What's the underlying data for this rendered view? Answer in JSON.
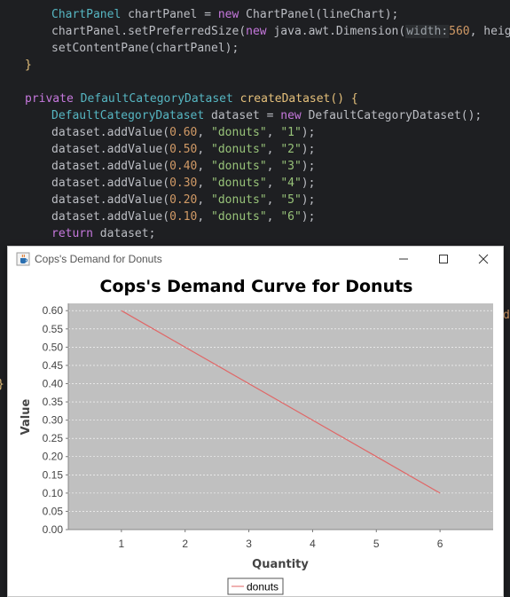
{
  "editor": {
    "lines": {
      "l1": {
        "a": "ChartPanel",
        "b": " chartPanel = ",
        "c": "new",
        "d": " ChartPanel(lineChart);"
      },
      "l2": {
        "a": "chartPanel.setPreferredSize(",
        "b": "new",
        "c": " java.awt.Dimension(",
        "hint": "width:",
        "d": "560",
        "e": ", heigh"
      },
      "l3": {
        "a": "setContentPane(chartPanel);"
      },
      "l4": {
        "a": "}"
      },
      "l6": {
        "a": "private",
        "b": " DefaultCategoryDataset",
        "c": " createDataset() {"
      },
      "l7": {
        "a": "DefaultCategoryDataset",
        "b": " dataset = ",
        "c": "new",
        "d": " DefaultCategoryDataset();"
      },
      "l8": {
        "a": "dataset.addValue(",
        "n": "0.60",
        "s": "\"donuts\"",
        "k": "\"1\"",
        "e": ");"
      },
      "l9": {
        "a": "dataset.addValue(",
        "n": "0.50",
        "s": "\"donuts\"",
        "k": "\"2\"",
        "e": ");"
      },
      "l10": {
        "a": "dataset.addValue(",
        "n": "0.40",
        "s": "\"donuts\"",
        "k": "\"3\"",
        "e": ");"
      },
      "l11": {
        "a": "dataset.addValue(",
        "n": "0.30",
        "s": "\"donuts\"",
        "k": "\"4\"",
        "e": ");"
      },
      "l12": {
        "a": "dataset.addValue(",
        "n": "0.20",
        "s": "\"donuts\"",
        "k": "\"5\"",
        "e": ");"
      },
      "l13": {
        "a": "dataset.addValue(",
        "n": "0.10",
        "s": "\"donuts\"",
        "k": "\"6\"",
        "e": ");"
      },
      "l14": {
        "a": "return",
        "b": " dataset;"
      }
    },
    "edge_glyphs": {
      "right_d": "d",
      "left_brace": "}"
    }
  },
  "window": {
    "title": "Cops's Demand for Donuts",
    "icon": "java-cup-icon",
    "controls": [
      "minimize-icon",
      "maximize-icon",
      "close-icon"
    ]
  },
  "chart_data": {
    "type": "line",
    "title": "Cops's Demand Curve for Donuts",
    "xlabel": "Quantity",
    "ylabel": "Value",
    "categories": [
      "1",
      "2",
      "3",
      "4",
      "5",
      "6"
    ],
    "series": [
      {
        "name": "donuts",
        "values": [
          0.6,
          0.5,
          0.4,
          0.3,
          0.2,
          0.1
        ],
        "color": "#e06666"
      }
    ],
    "ylim": [
      0.0,
      0.62
    ],
    "yticks": [
      "0.00",
      "0.05",
      "0.10",
      "0.15",
      "0.20",
      "0.25",
      "0.30",
      "0.35",
      "0.40",
      "0.45",
      "0.50",
      "0.55",
      "0.60"
    ],
    "plot_background": "#c0c0c0",
    "grid": true,
    "legend": "bottom-center"
  }
}
